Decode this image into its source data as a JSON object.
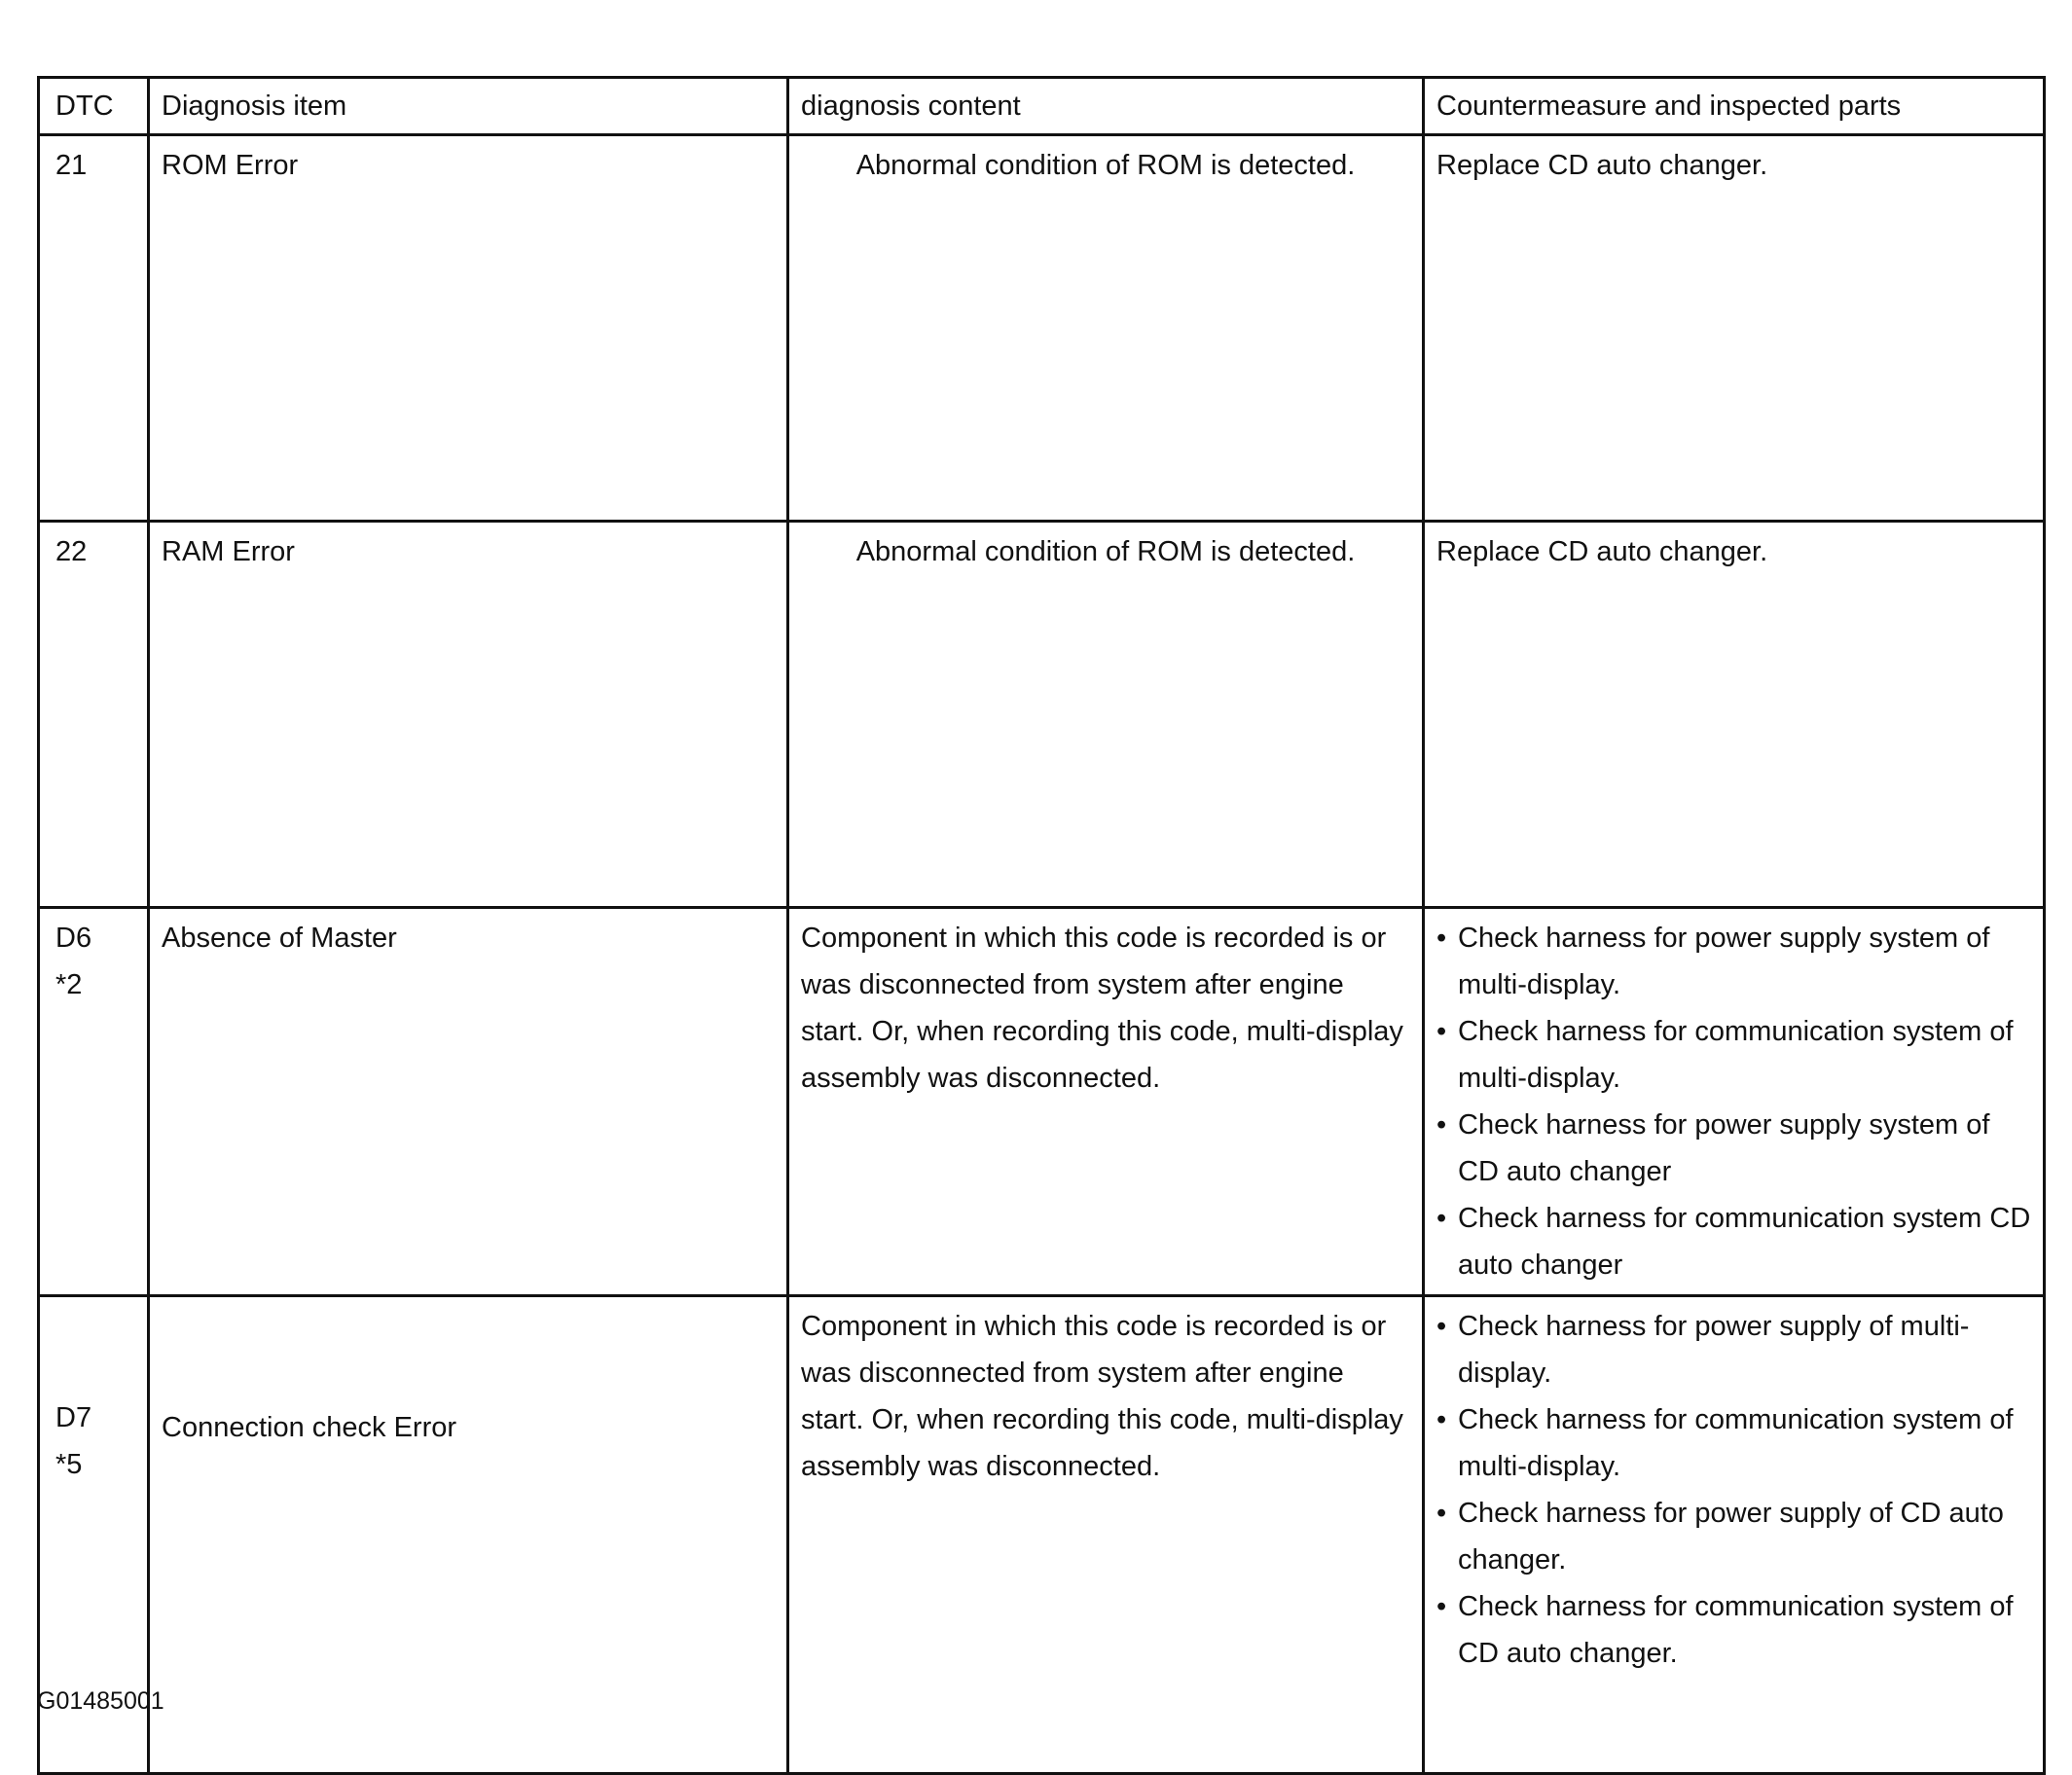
{
  "table": {
    "headers": [
      "DTC",
      "Diagnosis item",
      "diagnosis content",
      "Countermeasure and inspected parts"
    ],
    "rows": [
      {
        "dtc": "21",
        "note": "",
        "item": "ROM Error",
        "content": "Abnormal condition of ROM is detected.",
        "countermeasure": [
          "Replace CD auto changer."
        ]
      },
      {
        "dtc": "22",
        "note": "",
        "item": "RAM Error",
        "content": "Abnormal condition of ROM is detected.",
        "countermeasure": [
          "Replace CD auto changer."
        ]
      },
      {
        "dtc": "D6",
        "note": "*2",
        "item": "Absence of Master",
        "content": "Component in which this code is recorded is or was disconnected from system after engine start. Or, when recording this code, multi-display assembly was disconnected.",
        "countermeasure": [
          "Check harness for power supply system of multi-display.",
          "Check harness for communication system of multi-display.",
          "Check harness for power supply system of CD auto changer",
          "Check harness for communication system CD auto changer"
        ]
      },
      {
        "dtc": "D7",
        "note": "*5",
        "item": "Connection check Error",
        "content": "Component in which this code is recorded is or was disconnected from system after engine start. Or, when recording this code, multi-display assembly was disconnected.",
        "countermeasure": [
          "Check harness for power supply of multi-display.",
          "Check harness for communication system of multi-display.",
          "Check harness for power supply of CD auto changer.",
          "Check harness for communication system of CD auto changer."
        ]
      }
    ]
  },
  "figure_id": "G01485001"
}
